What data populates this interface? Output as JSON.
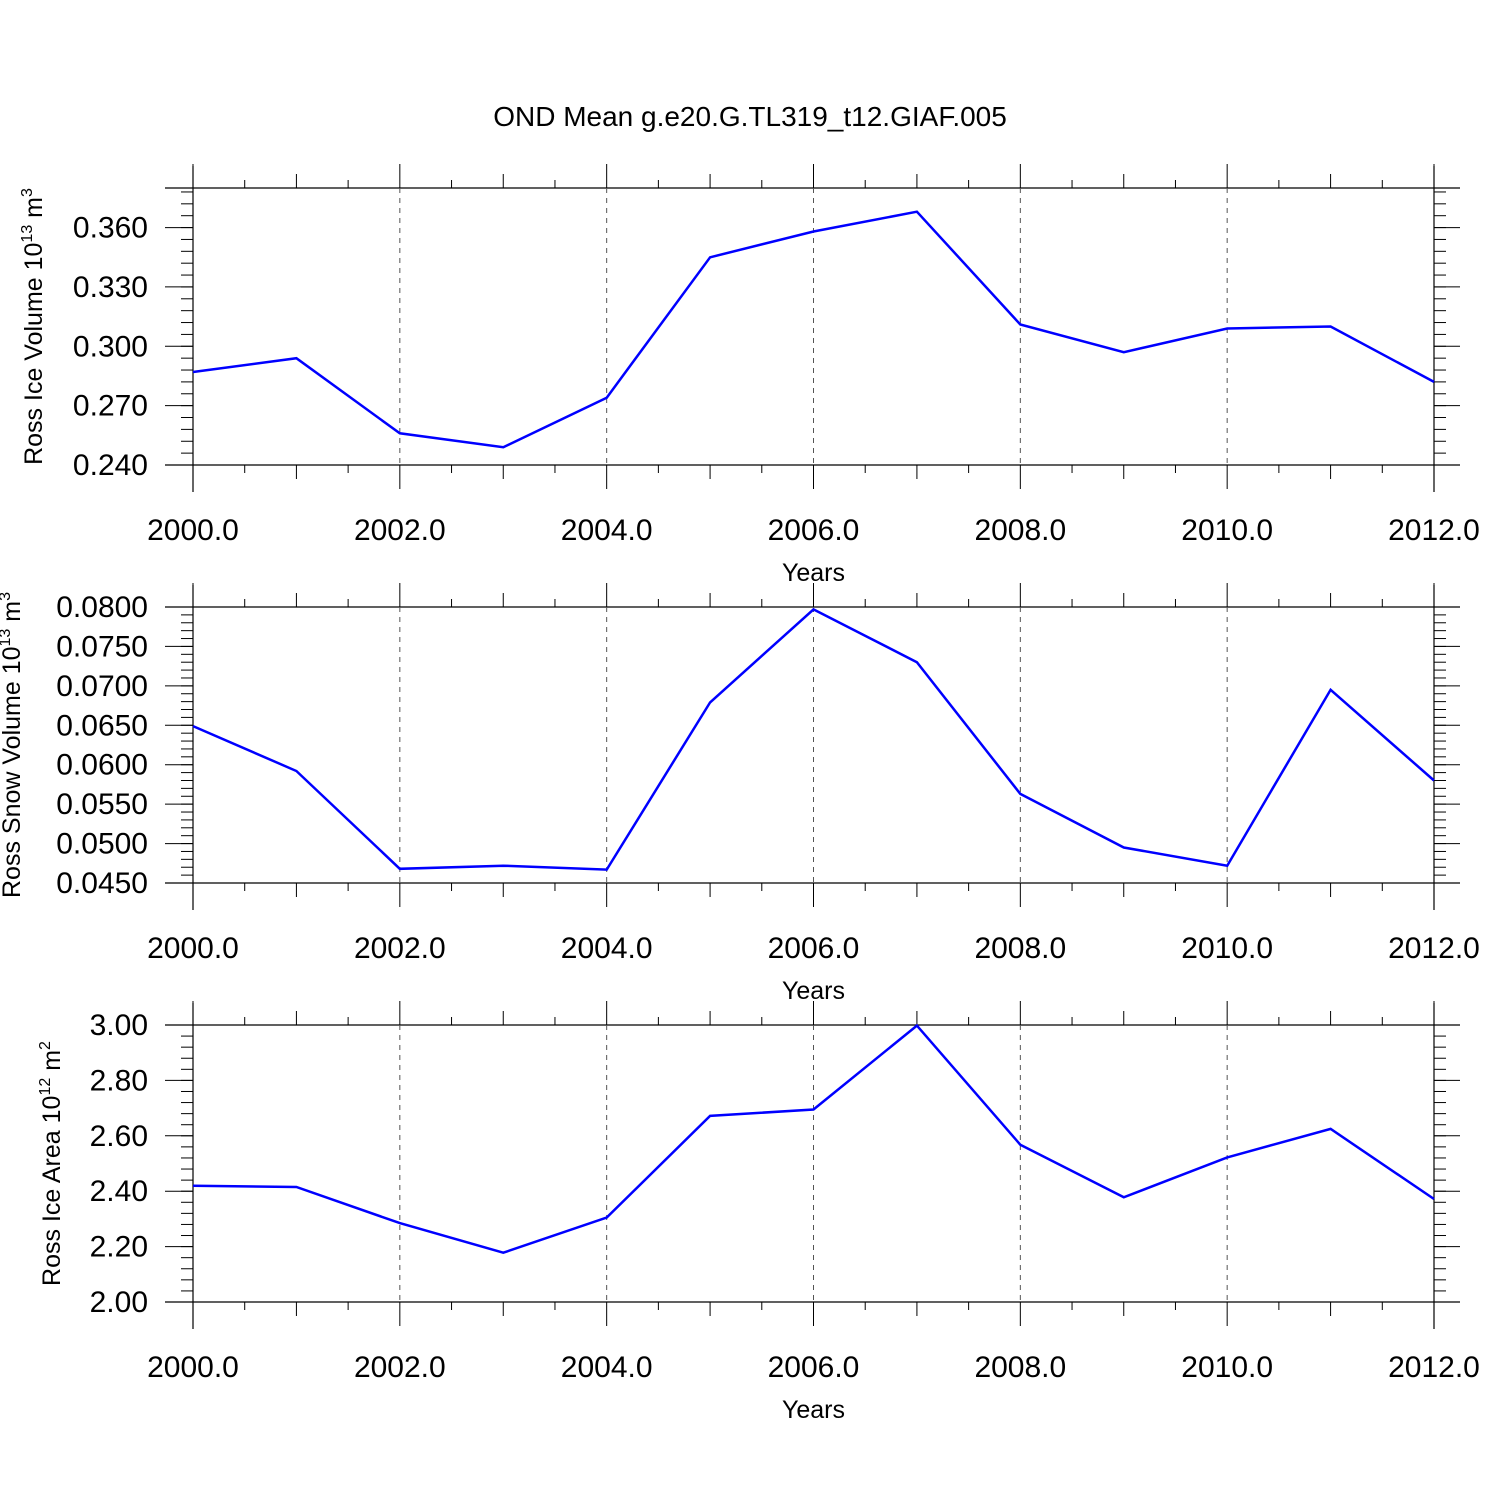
{
  "figure": {
    "title": "OND Mean g.e20.G.TL319_t12.GIAF.005"
  },
  "chart_data": [
    {
      "type": "line",
      "title": "",
      "xlabel": "Years",
      "ylabel": {
        "main": "Ross Ice Volume 10",
        "exp1": "13",
        "unit": " m",
        "exp2": "3"
      },
      "xlim": [
        2000,
        2012
      ],
      "ylim": [
        0.24,
        0.38
      ],
      "x_ticks": [
        2000,
        2002,
        2004,
        2006,
        2008,
        2010,
        2012
      ],
      "x_tick_labels": [
        "2000.0",
        "2002.0",
        "2004.0",
        "2006.0",
        "2008.0",
        "2010.0",
        "2012.0"
      ],
      "y_ticks": [
        0.24,
        0.27,
        0.3,
        0.33,
        0.36
      ],
      "y_tick_labels": [
        "0.240",
        "0.270",
        "0.300",
        "0.330",
        "0.360"
      ],
      "y_minor_step": 0.006,
      "grid": "vertical dashed at major x ticks",
      "color": "#0000ff",
      "x": [
        2000,
        2001,
        2002,
        2003,
        2004,
        2005,
        2006,
        2007,
        2008,
        2009,
        2010,
        2011,
        2012
      ],
      "values": [
        0.287,
        0.294,
        0.256,
        0.249,
        0.274,
        0.345,
        0.358,
        0.368,
        0.311,
        0.297,
        0.309,
        0.31,
        0.282
      ]
    },
    {
      "type": "line",
      "title": "",
      "xlabel": "Years",
      "ylabel": {
        "main": "Ross Snow Volume 10",
        "exp1": "13",
        "unit": " m",
        "exp2": "3"
      },
      "xlim": [
        2000,
        2012
      ],
      "ylim": [
        0.045,
        0.08
      ],
      "x_ticks": [
        2000,
        2002,
        2004,
        2006,
        2008,
        2010,
        2012
      ],
      "x_tick_labels": [
        "2000.0",
        "2002.0",
        "2004.0",
        "2006.0",
        "2008.0",
        "2010.0",
        "2012.0"
      ],
      "y_ticks": [
        0.045,
        0.05,
        0.055,
        0.06,
        0.065,
        0.07,
        0.075,
        0.08
      ],
      "y_tick_labels": [
        "0.0450",
        "0.0500",
        "0.0550",
        "0.0600",
        "0.0650",
        "0.0700",
        "0.0750",
        "0.0800"
      ],
      "y_minor_step": 0.001,
      "grid": "vertical dashed at major x ticks",
      "color": "#0000ff",
      "x": [
        2000,
        2001,
        2002,
        2003,
        2004,
        2005,
        2006,
        2007,
        2008,
        2009,
        2010,
        2011,
        2012
      ],
      "values": [
        0.0649,
        0.0592,
        0.0468,
        0.0472,
        0.0467,
        0.0679,
        0.0797,
        0.073,
        0.0563,
        0.0495,
        0.0472,
        0.0695,
        0.058
      ]
    },
    {
      "type": "line",
      "title": "",
      "xlabel": "Years",
      "ylabel": {
        "main": "Ross Ice Area 10",
        "exp1": "12",
        "unit": " m",
        "exp2": "2"
      },
      "xlim": [
        2000,
        2012
      ],
      "ylim": [
        2.0,
        3.0
      ],
      "x_ticks": [
        2000,
        2002,
        2004,
        2006,
        2008,
        2010,
        2012
      ],
      "x_tick_labels": [
        "2000.0",
        "2002.0",
        "2004.0",
        "2006.0",
        "2008.0",
        "2010.0",
        "2012.0"
      ],
      "y_ticks": [
        2.0,
        2.2,
        2.4,
        2.6,
        2.8,
        3.0
      ],
      "y_tick_labels": [
        "2.00",
        "2.20",
        "2.40",
        "2.60",
        "2.80",
        "3.00"
      ],
      "y_minor_step": 0.04,
      "grid": "vertical dashed at major x ticks",
      "color": "#0000ff",
      "x": [
        2000,
        2001,
        2002,
        2003,
        2004,
        2005,
        2006,
        2007,
        2008,
        2009,
        2010,
        2011,
        2012
      ],
      "values": [
        2.42,
        2.415,
        2.285,
        2.178,
        2.305,
        2.672,
        2.695,
        2.998,
        2.568,
        2.378,
        2.522,
        2.625,
        2.372
      ]
    }
  ]
}
